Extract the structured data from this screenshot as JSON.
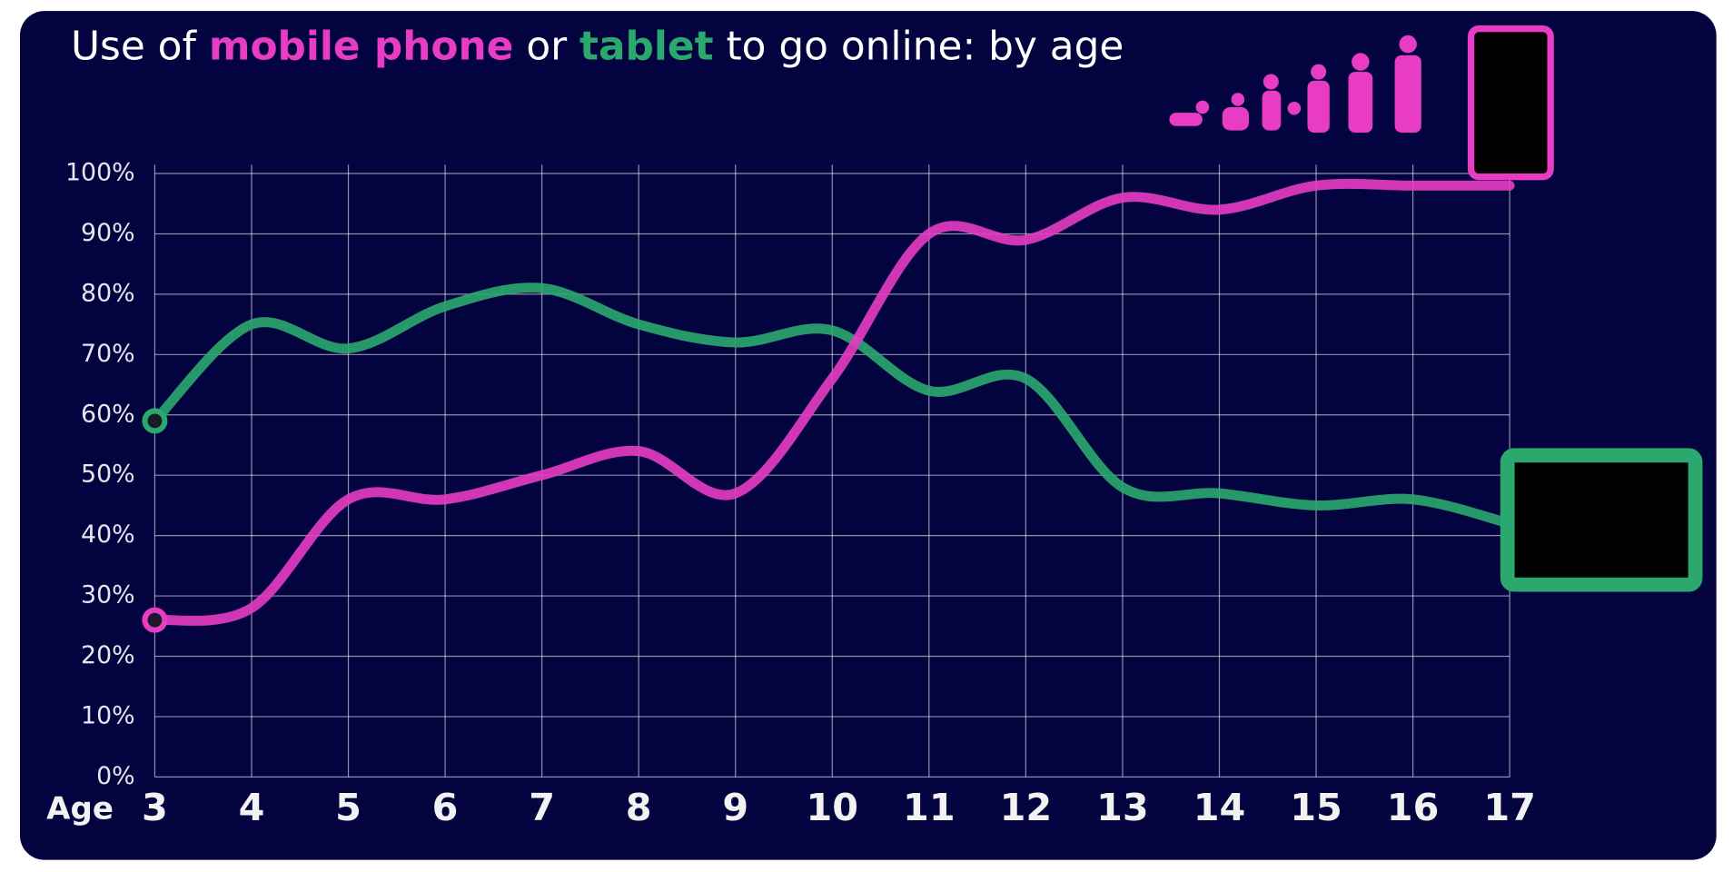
{
  "chart_data": {
    "type": "line",
    "title_parts": [
      "Use of",
      "or",
      "to go online: by age"
    ],
    "xlabel": "Age",
    "x": [
      3,
      4,
      5,
      6,
      7,
      8,
      9,
      10,
      11,
      12,
      13,
      14,
      15,
      16,
      17
    ],
    "xlim": [
      3,
      17
    ],
    "xticks": [
      3,
      4,
      5,
      6,
      7,
      8,
      9,
      10,
      11,
      12,
      13,
      14,
      15,
      16,
      17
    ],
    "ylim": [
      0,
      100
    ],
    "yticks": [
      {
        "value": 0,
        "label": "0%"
      },
      {
        "value": 10,
        "label": "10%"
      },
      {
        "value": 20,
        "label": "20%"
      },
      {
        "value": 30,
        "label": "30%"
      },
      {
        "value": 40,
        "label": "40%"
      },
      {
        "value": 50,
        "label": "50%"
      },
      {
        "value": 60,
        "label": "60%"
      },
      {
        "value": 70,
        "label": "70%"
      },
      {
        "value": 80,
        "label": "80%"
      },
      {
        "value": 90,
        "label": "90%"
      },
      {
        "value": 100,
        "label": "100%"
      }
    ],
    "grid": true,
    "series": [
      {
        "name": "mobile phone",
        "color": "#e83cc4",
        "values": [
          26,
          28,
          46,
          46,
          50,
          54,
          47,
          66,
          90,
          89,
          96,
          94,
          98,
          98,
          98
        ]
      },
      {
        "name": "tablet",
        "color": "#2ba86e",
        "values": [
          59,
          75,
          71,
          78,
          81,
          75,
          72,
          74,
          64,
          66,
          48,
          47,
          45,
          46,
          42
        ]
      }
    ]
  }
}
